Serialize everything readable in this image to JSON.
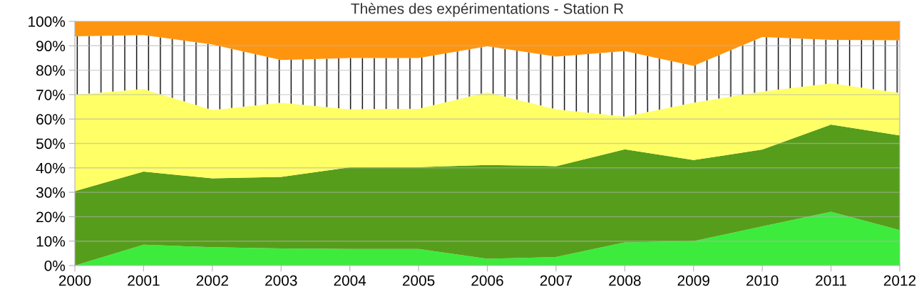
{
  "chart_data": {
    "type": "area",
    "stacked": true,
    "title": "Thèmes des expérimentations - Station R",
    "x": [
      2000,
      2001,
      2002,
      2003,
      2004,
      2005,
      2006,
      2007,
      2008,
      2009,
      2010,
      2011,
      2012
    ],
    "series": [
      {
        "color": "#3deb3d",
        "values": [
          0,
          8.5,
          7.5,
          7,
          6.8,
          6.8,
          2.8,
          3.5,
          9.5,
          10,
          16,
          22,
          14.5
        ]
      },
      {
        "color": "#579d1c",
        "values": [
          30.5,
          30,
          28.2,
          29.3,
          33.4,
          33.5,
          38.4,
          37.2,
          38.1,
          33.2,
          31.5,
          35.7,
          38.8
        ]
      },
      {
        "color": "#ffff66",
        "values": [
          39.5,
          33.8,
          28,
          30.4,
          23.8,
          23.9,
          29.8,
          23.3,
          13.4,
          23.5,
          23.8,
          16.9,
          17.4
        ]
      },
      {
        "color": "#ffffff",
        "values": [
          23.9,
          22.1,
          26.8,
          17.5,
          21,
          20.8,
          18.8,
          21.6,
          26.8,
          15.1,
          22.3,
          17.8,
          21.6
        ]
      },
      {
        "color": "#ff950e",
        "values": [
          6.1,
          5.6,
          9.5,
          15.8,
          15,
          15,
          10.2,
          14.4,
          12.2,
          18.2,
          6.4,
          7.6,
          7.7
        ]
      }
    ],
    "xlim": [
      2000,
      2012
    ],
    "xticks": [
      2000,
      2001,
      2002,
      2003,
      2004,
      2005,
      2006,
      2007,
      2008,
      2009,
      2010,
      2011,
      2012
    ],
    "ylim": [
      0,
      100
    ],
    "yticks": [
      {
        "value": 0,
        "label": "0%"
      },
      {
        "value": 10,
        "label": "10%"
      },
      {
        "value": 20,
        "label": "20%"
      },
      {
        "value": 30,
        "label": "30%"
      },
      {
        "value": 40,
        "label": "40%"
      },
      {
        "value": 50,
        "label": "50%"
      },
      {
        "value": 60,
        "label": "60%"
      },
      {
        "value": 70,
        "label": "70%"
      },
      {
        "value": 80,
        "label": "80%"
      },
      {
        "value": 90,
        "label": "90%"
      },
      {
        "value": 100,
        "label": "100%"
      }
    ],
    "grid": "y"
  }
}
